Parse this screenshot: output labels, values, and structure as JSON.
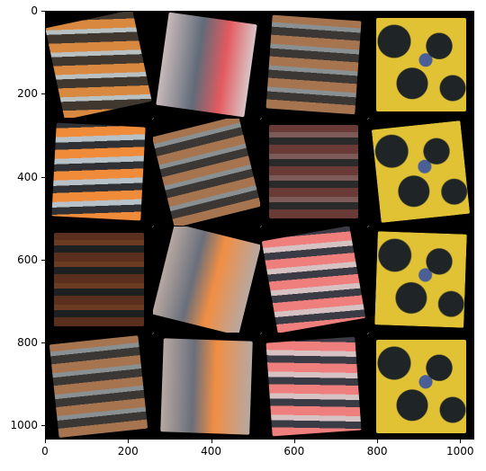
{
  "image": {
    "description": "4x4 grid of texture patches (orange/black striped and yellow/black spotted) shown on a plotted image axis",
    "background": "#000000",
    "grid_line_color": "#555555"
  },
  "axes": {
    "x_ticks": [
      "0",
      "200",
      "400",
      "600",
      "800",
      "1000"
    ],
    "y_ticks": [
      "0",
      "200",
      "400",
      "600",
      "800",
      "1000"
    ],
    "x_range": [
      0,
      1034
    ],
    "y_range": [
      0,
      1034
    ]
  },
  "tiles": [
    {
      "row": 0,
      "col": 0,
      "style": "orange-stripes",
      "rotate": -12
    },
    {
      "row": 0,
      "col": 1,
      "style": "gray-pink",
      "rotate": 8
    },
    {
      "row": 0,
      "col": 2,
      "style": "orange-stripes-muted",
      "rotate": 4
    },
    {
      "row": 0,
      "col": 3,
      "style": "yellow-spots",
      "rotate": 0
    },
    {
      "row": 1,
      "col": 0,
      "style": "orange-stripes-bright",
      "rotate": 3
    },
    {
      "row": 1,
      "col": 1,
      "style": "orange-stripes-muted",
      "rotate": -14
    },
    {
      "row": 1,
      "col": 2,
      "style": "dark-red",
      "rotate": 0
    },
    {
      "row": 1,
      "col": 3,
      "style": "yellow-spots",
      "rotate": -6
    },
    {
      "row": 2,
      "col": 0,
      "style": "dark-brown",
      "rotate": 0
    },
    {
      "row": 2,
      "col": 1,
      "style": "gray-orange",
      "rotate": 14
    },
    {
      "row": 2,
      "col": 2,
      "style": "pink-stripes",
      "rotate": -10
    },
    {
      "row": 2,
      "col": 3,
      "style": "yellow-spots",
      "rotate": 2
    },
    {
      "row": 3,
      "col": 0,
      "style": "orange-stripes-muted",
      "rotate": -6
    },
    {
      "row": 3,
      "col": 1,
      "style": "gray-orange",
      "rotate": 2
    },
    {
      "row": 3,
      "col": 2,
      "style": "pink-stripes",
      "rotate": -4
    },
    {
      "row": 3,
      "col": 3,
      "style": "yellow-spots",
      "rotate": 0
    }
  ],
  "texture_styles": {
    "orange-stripes": "repeating-linear-gradient(10deg, #d8883f 0 10px, #40382f 10px 20px, #b9c0c2 20px 25px)",
    "orange-stripes-muted": "repeating-linear-gradient(0deg, #a6754f 0 10px, #3b3734 10px 19px, #8a8f92 19px 24px)",
    "orange-stripes-bright": "repeating-linear-gradient(-5deg, #f08b3a 0 10px, #2f3134 10px 18px, #b7c2c8 18px 24px)",
    "gray-pink": "linear-gradient(90deg, #c8b9ba 0%, #616b78 40%, #e45a5f 70%, #d8c5c6 100%)",
    "dark-red": "repeating-linear-gradient(0deg, #6a3a36 0 10px, #2a2a2b 10px 18px, #7b5a58 18px 24px)",
    "dark-brown": "repeating-linear-gradient(0deg, #5a2f1e 0 10px, #1e1f20 10px 18px, #6b3b23 18px 24px)",
    "gray-orange": "linear-gradient(90deg, #b7a8a2 0%, #6a6f7b 35%, #f18e43 60%, #b7a8a2 100%)",
    "pink-stripes": "repeating-linear-gradient(5deg, #ef7f7c 0 10px, #3a3b45 10px 18px, #d6c2c3 18px 24px)",
    "yellow-spots": "radial-gradient(circle at 20% 25%, #1f2426 0 16%, transparent 17%), radial-gradient(circle at 70% 30%, #1f2426 0 14%, transparent 15%), radial-gradient(circle at 40% 70%, #1f2426 0 18%, transparent 19%), radial-gradient(circle at 85% 75%, #1f2426 0 12%, transparent 13%), radial-gradient(circle at 55% 45%, #4a5f96 0 9%, transparent 10%), linear-gradient(#e1c235, #e1c235)"
  }
}
